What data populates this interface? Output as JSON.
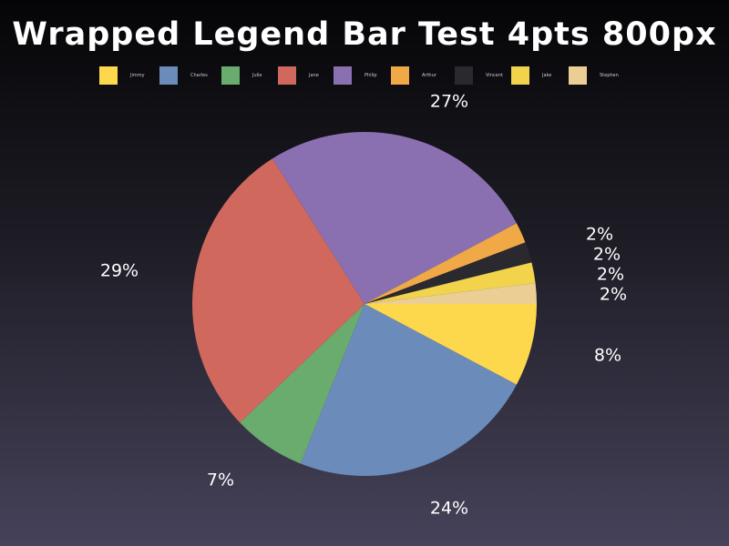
{
  "chart_data": {
    "type": "pie",
    "title": "Wrapped Legend Bar Test 4pts 800px",
    "legend_position": "top",
    "slices": [
      {
        "name": "Jimmy",
        "value": 8,
        "label": "8%",
        "color": "#fdd74c"
      },
      {
        "name": "Charles",
        "value": 24,
        "label": "24%",
        "color": "#6b8cba"
      },
      {
        "name": "Julie",
        "value": 7,
        "label": "7%",
        "color": "#6aab6e"
      },
      {
        "name": "Jane",
        "value": 29,
        "label": "29%",
        "color": "#d0685e"
      },
      {
        "name": "Philip",
        "value": 27,
        "label": "27%",
        "color": "#8b70b1"
      },
      {
        "name": "Arthur",
        "value": 2,
        "label": "2%",
        "color": "#f1a846"
      },
      {
        "name": "Vincent",
        "value": 2,
        "label": "2%",
        "color": "#2a2930"
      },
      {
        "name": "Jake",
        "value": 2,
        "label": "2%",
        "color": "#f1d44c"
      },
      {
        "name": "Stephen",
        "value": 2,
        "label": "2%",
        "color": "#ebce94"
      }
    ]
  }
}
